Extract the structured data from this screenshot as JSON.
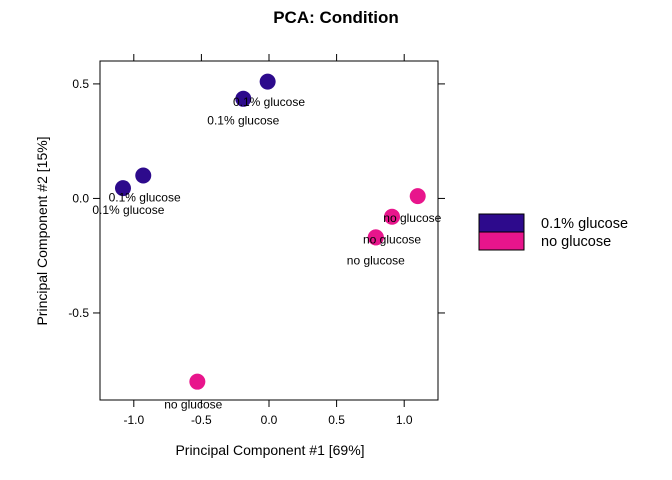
{
  "chart_data": {
    "type": "scatter",
    "title": "PCA: Condition",
    "xlabel": "Principal Component #1 [69%]",
    "ylabel": "Principal Component #2 [15%]",
    "xlim": [
      -1.25,
      1.25
    ],
    "ylim": [
      -0.88,
      0.6
    ],
    "xticks": [
      -1.0,
      -0.5,
      0.0,
      0.5,
      1.0
    ],
    "xtick_labels": [
      "-1.0",
      "-0.5",
      "0.0",
      "0.5",
      "1.0"
    ],
    "yticks": [
      -0.5,
      0.0,
      0.5
    ],
    "ytick_labels": [
      "-0.5",
      "0.0",
      "0.5"
    ],
    "grid": false,
    "legend_position": "right",
    "legend": [
      {
        "label": "0.1% glucose",
        "color": "#2D0A8C"
      },
      {
        "label": "no glucose",
        "color": "#E8158C"
      }
    ],
    "series": [
      {
        "name": "0.1% glucose",
        "color": "#2D0A8C",
        "points": [
          {
            "x": -0.01,
            "y": 0.51,
            "label": "0.1% glucose",
            "lx": 0.0,
            "ly": 0.42
          },
          {
            "x": -0.19,
            "y": 0.435,
            "label": "0.1% glucose",
            "lx": -0.19,
            "ly": 0.34
          },
          {
            "x": -0.93,
            "y": 0.1,
            "label": "0.1% glucose",
            "lx": -0.92,
            "ly": 0.005
          },
          {
            "x": -1.08,
            "y": 0.045,
            "label": "0.1% glucose",
            "lx": -1.04,
            "ly": -0.05
          }
        ]
      },
      {
        "name": "no glucose",
        "color": "#E8158C",
        "points": [
          {
            "x": 1.1,
            "y": 0.01,
            "label": "",
            "lx": 1.1,
            "ly": 0.01
          },
          {
            "x": 0.91,
            "y": -0.08,
            "label": "no glucose",
            "lx": 1.06,
            "ly": -0.085
          },
          {
            "x": 0.79,
            "y": -0.17,
            "label": "no glucose",
            "lx": 0.91,
            "ly": -0.18
          },
          {
            "x": 0.79,
            "y": -0.17,
            "label": "no glucose",
            "lx": 0.79,
            "ly": -0.27
          },
          {
            "x": -0.53,
            "y": -0.8,
            "label": "no glucose",
            "lx": -0.56,
            "ly": -0.9
          }
        ]
      }
    ]
  }
}
